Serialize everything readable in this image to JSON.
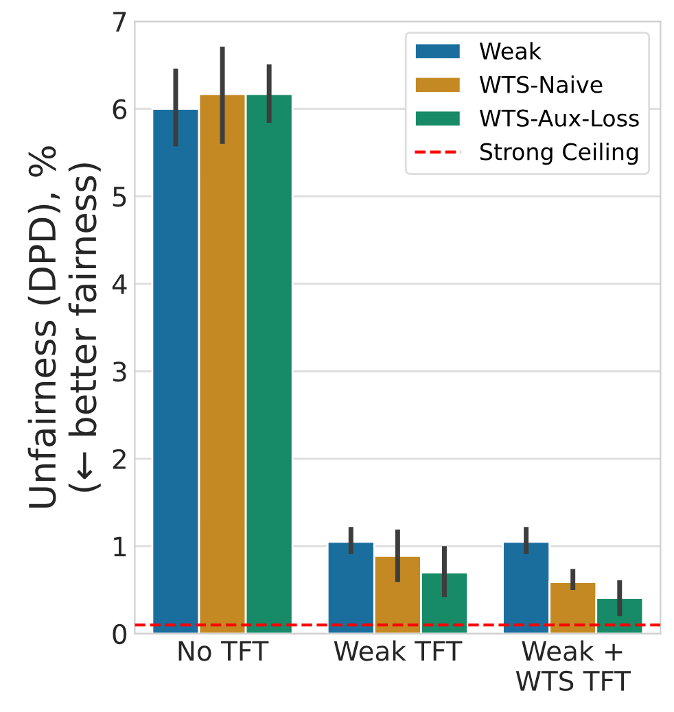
{
  "chart_data": {
    "type": "bar",
    "ylabel": "Unfairness (DPD), %\n(← better fairness)",
    "categories": [
      "No TFT",
      "Weak TFT",
      "Weak +\nWTS TFT"
    ],
    "series": [
      {
        "name": "Weak",
        "color": "#1a6e9e",
        "values": [
          6.0,
          1.05,
          1.05
        ],
        "errors": [
          [
            5.57,
            6.46
          ],
          [
            0.91,
            1.22
          ],
          [
            0.91,
            1.22
          ]
        ]
      },
      {
        "name": "WTS-Naive",
        "color": "#c48922",
        "values": [
          6.17,
          0.89,
          0.59
        ],
        "errors": [
          [
            5.6,
            6.71
          ],
          [
            0.59,
            1.19
          ],
          [
            0.5,
            0.74
          ]
        ]
      },
      {
        "name": "WTS-Aux-Loss",
        "color": "#178a68",
        "values": [
          6.17,
          0.7,
          0.41
        ],
        "errors": [
          [
            5.84,
            6.51
          ],
          [
            0.42,
            1.0
          ],
          [
            0.2,
            0.61
          ]
        ]
      }
    ],
    "ref_lines": [
      {
        "axis": "y",
        "value": 0.1,
        "label": "Strong Ceiling",
        "color": "#ff0000",
        "line_style": "dashed"
      }
    ],
    "ylim": [
      0,
      7
    ],
    "yticks": [
      0,
      1,
      2,
      3,
      4,
      5,
      6,
      7
    ],
    "grid": "y",
    "legend": "top right"
  }
}
